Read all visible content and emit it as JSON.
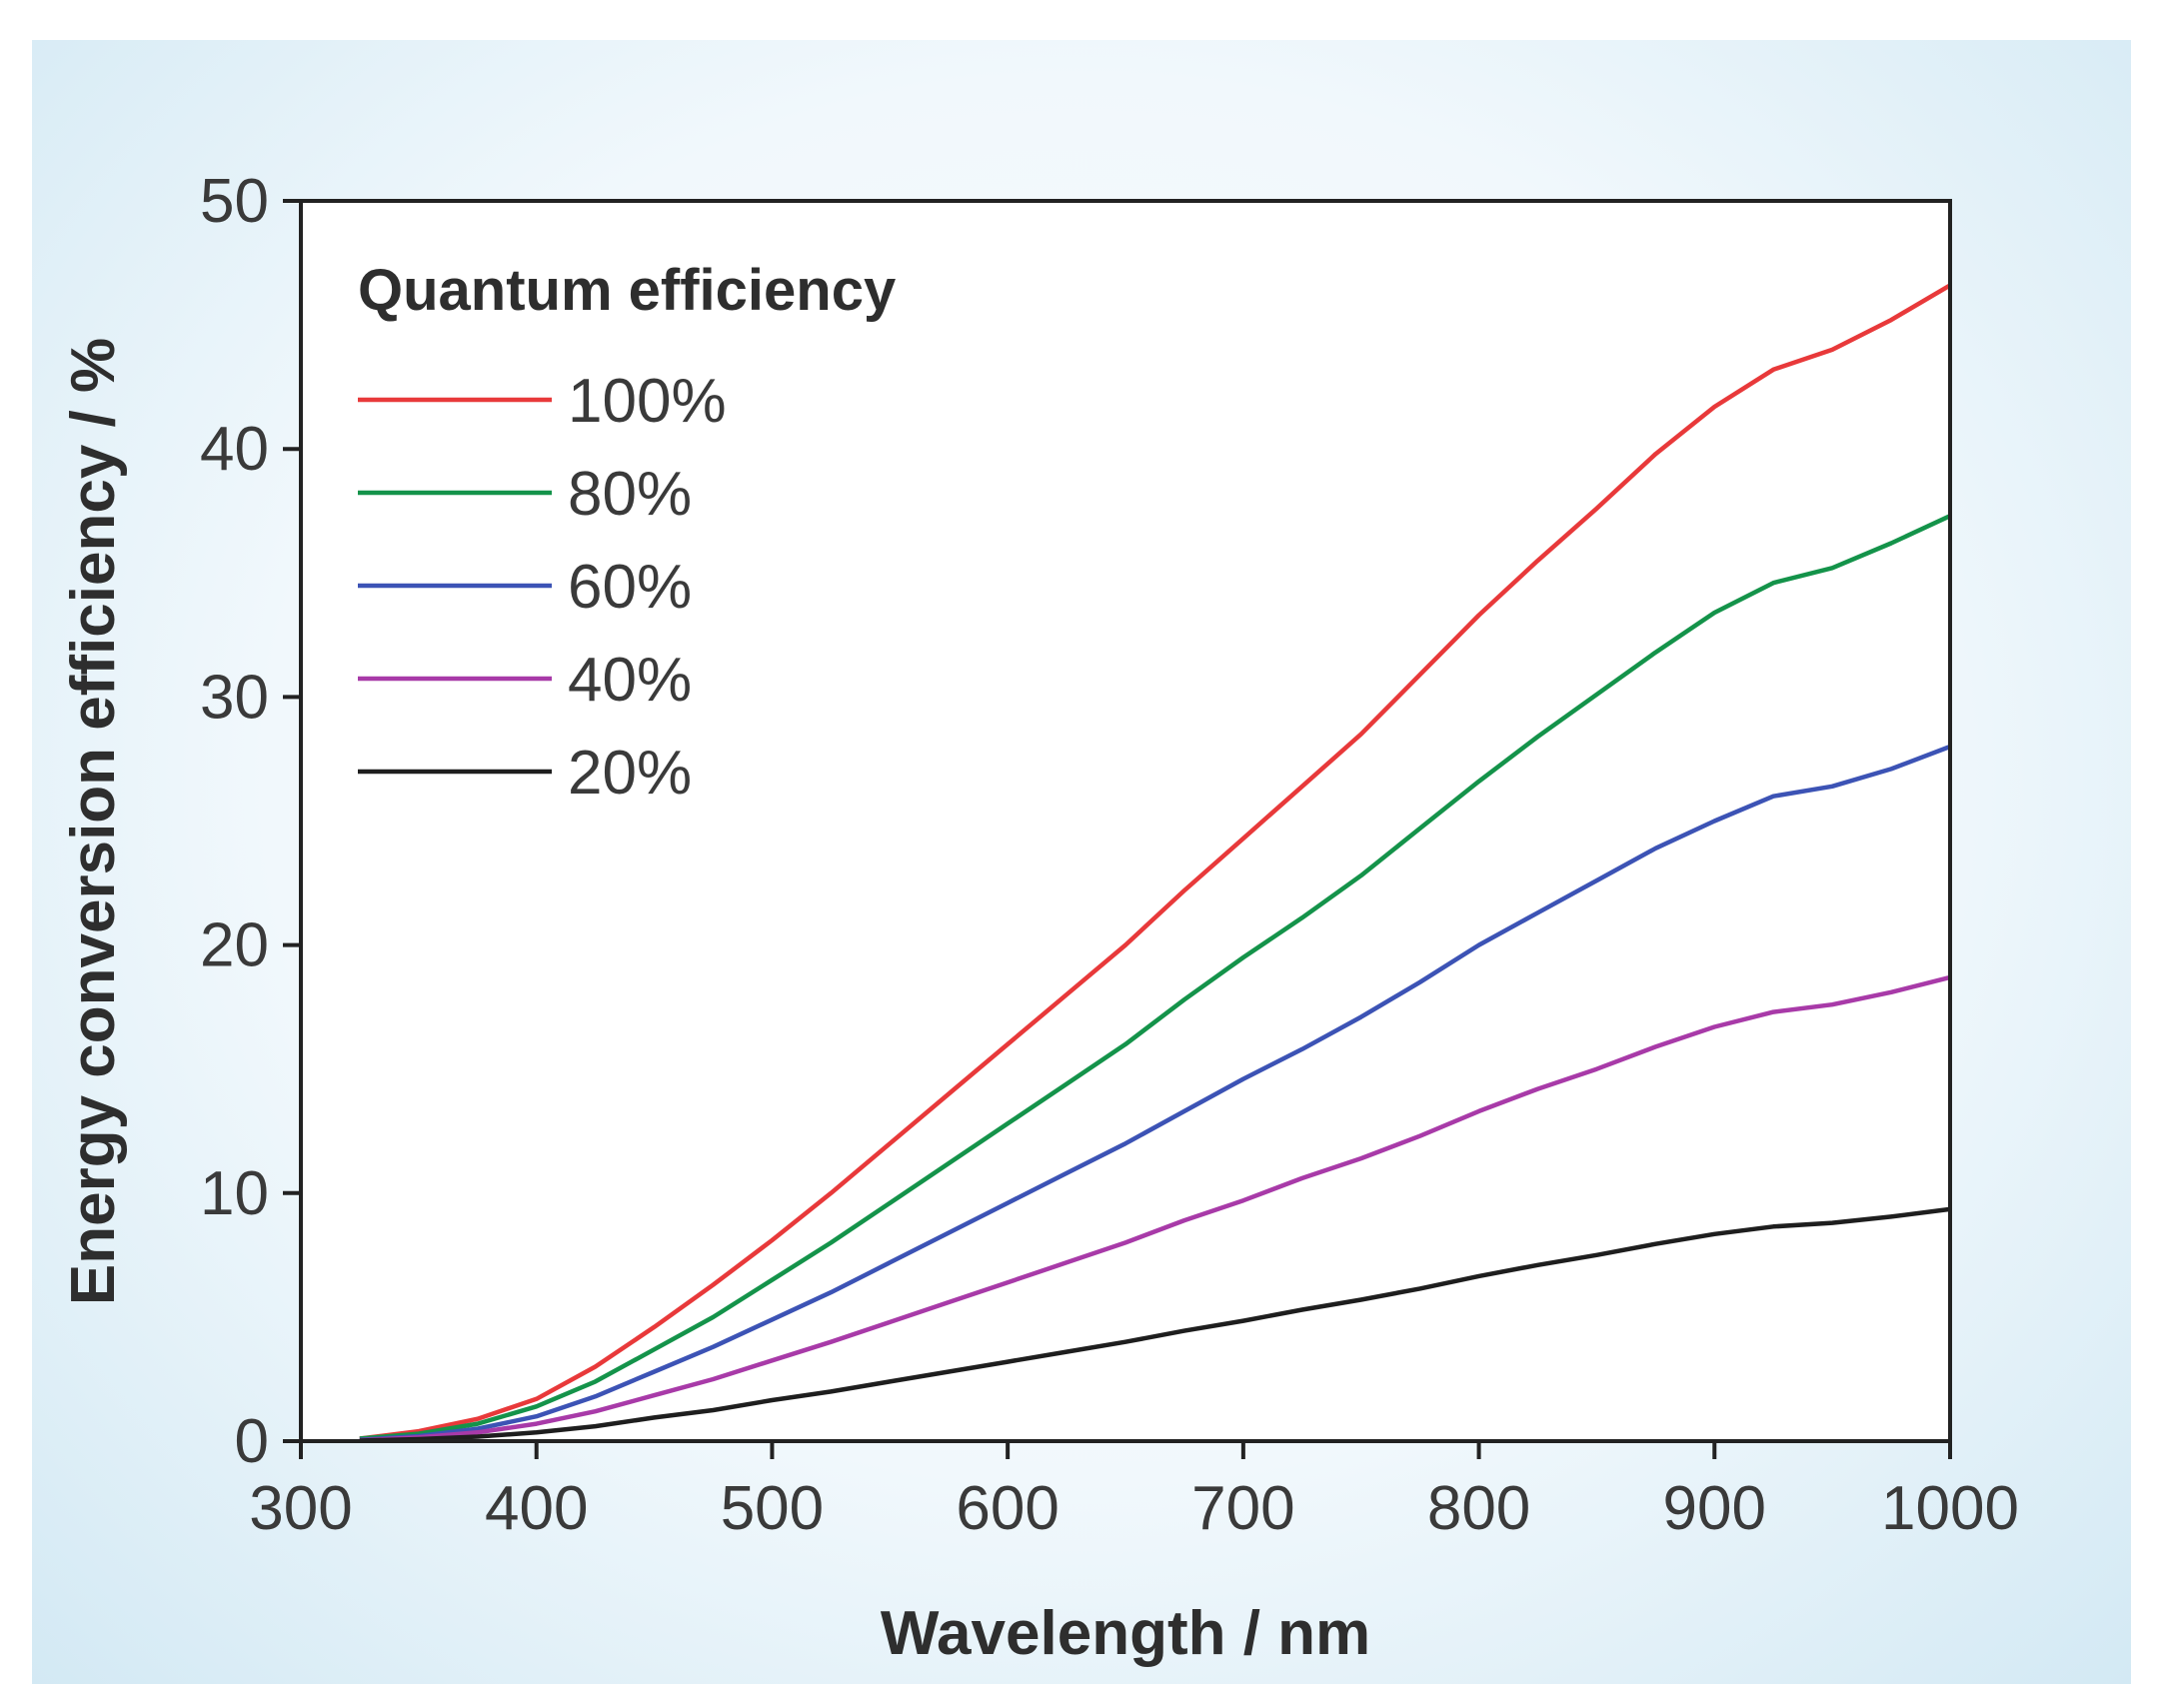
{
  "chart_data": {
    "type": "line",
    "title": "",
    "xlabel": "Wavelength / nm",
    "ylabel": "Energy conversion efficiency / %",
    "xlim": [
      300,
      1000
    ],
    "ylim": [
      0,
      50
    ],
    "xticks": [
      "300",
      "400",
      "500",
      "600",
      "700",
      "800",
      "900",
      "1000"
    ],
    "yticks": [
      "0",
      "10",
      "20",
      "30",
      "40",
      "50"
    ],
    "grid": false,
    "legend": {
      "title": "Quantum efficiency",
      "placement": "top-left"
    },
    "x": [
      325,
      350,
      375,
      400,
      425,
      450,
      475,
      500,
      525,
      550,
      575,
      600,
      625,
      650,
      675,
      700,
      725,
      750,
      775,
      800,
      825,
      850,
      875,
      900,
      925,
      950,
      975,
      1000
    ],
    "series": [
      {
        "name": "100%",
        "color": "#e8393a",
        "values": [
          0.1,
          0.4,
          0.9,
          1.7,
          3.0,
          4.6,
          6.3,
          8.1,
          10.0,
          12.0,
          14.0,
          16.0,
          18.0,
          20.0,
          22.2,
          24.3,
          26.4,
          28.5,
          30.9,
          33.3,
          35.5,
          37.6,
          39.8,
          41.7,
          43.2,
          44.0,
          45.2,
          46.6
        ]
      },
      {
        "name": "80%",
        "color": "#14934a",
        "values": [
          0.1,
          0.3,
          0.7,
          1.4,
          2.4,
          3.7,
          5.0,
          6.5,
          8.0,
          9.6,
          11.2,
          12.8,
          14.4,
          16.0,
          17.8,
          19.5,
          21.1,
          22.8,
          24.7,
          26.6,
          28.4,
          30.1,
          31.8,
          33.4,
          34.6,
          35.2,
          36.2,
          37.3
        ]
      },
      {
        "name": "60%",
        "color": "#3c53b5",
        "values": [
          0.05,
          0.2,
          0.5,
          1.0,
          1.8,
          2.8,
          3.8,
          4.9,
          6.0,
          7.2,
          8.4,
          9.6,
          10.8,
          12.0,
          13.3,
          14.6,
          15.8,
          17.1,
          18.5,
          20.0,
          21.3,
          22.6,
          23.9,
          25.0,
          26.0,
          26.4,
          27.1,
          28.0
        ]
      },
      {
        "name": "40%",
        "color": "#a83aa8",
        "values": [
          0.03,
          0.15,
          0.35,
          0.7,
          1.2,
          1.85,
          2.5,
          3.25,
          4.0,
          4.8,
          5.6,
          6.4,
          7.2,
          8.0,
          8.9,
          9.7,
          10.6,
          11.4,
          12.3,
          13.3,
          14.2,
          15.0,
          15.9,
          16.7,
          17.3,
          17.6,
          18.1,
          18.7
        ]
      },
      {
        "name": "20%",
        "color": "#1e1e1e",
        "values": [
          0.02,
          0.08,
          0.18,
          0.35,
          0.6,
          0.95,
          1.25,
          1.65,
          2.0,
          2.4,
          2.8,
          3.2,
          3.6,
          4.0,
          4.45,
          4.85,
          5.3,
          5.7,
          6.15,
          6.65,
          7.1,
          7.5,
          7.95,
          8.35,
          8.65,
          8.8,
          9.05,
          9.35
        ]
      }
    ]
  }
}
